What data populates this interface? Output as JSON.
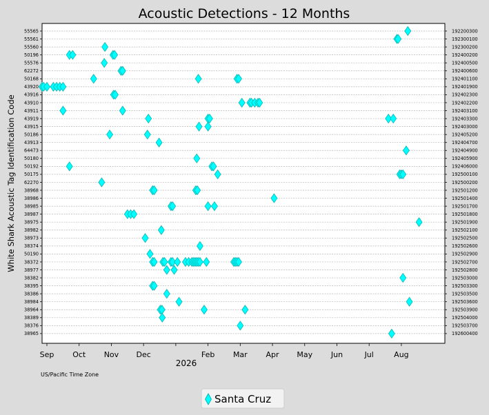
{
  "chart_data": {
    "type": "scatter",
    "title": "Acoustic Detections - 12 Months",
    "ylabel": "White Shark Acoustic Tag Identification Code",
    "timezone_note": "US/Pacific Time Zone",
    "x_year_label": "2026",
    "x_ticks": [
      "Sep",
      "Oct",
      "Nov",
      "Dec",
      "Feb",
      "Mar",
      "Apr",
      "May",
      "Jun",
      "Jul",
      "Aug"
    ],
    "xlim_months": [
      -0.15,
      12.35
    ],
    "grid": true,
    "legend_position": "bottom-center",
    "marker_color": "#00ffff",
    "marker_edge": "#00aaaa",
    "tags_left": [
      "55565",
      "55561",
      "55560",
      "50196",
      "55576",
      "62272",
      "50168",
      "43920",
      "43916",
      "43910",
      "43911",
      "43919",
      "43915",
      "50186",
      "43913",
      "64473",
      "50180",
      "50192",
      "50175",
      "62270",
      "38968",
      "38986",
      "38985",
      "38987",
      "38975",
      "38982",
      "38973",
      "38374",
      "50190",
      "38372",
      "38977",
      "38382",
      "38395",
      "38386",
      "38984",
      "38964",
      "38389",
      "38376",
      "38965"
    ],
    "tags_right": [
      "192200300",
      "192300100",
      "192300200",
      "192400200",
      "192400500",
      "192400600",
      "192401100",
      "192401900",
      "192402300",
      "192402200",
      "192403100",
      "192403300",
      "192403000",
      "192405200",
      "192404700",
      "192404900",
      "192405900",
      "192406000",
      "192500100",
      "192500200",
      "192501200",
      "192501400",
      "192501700",
      "192501800",
      "192501900",
      "192502100",
      "192502500",
      "192502600",
      "192502900",
      "192502700",
      "192502800",
      "192503000",
      "192503300",
      "192503500",
      "192503600",
      "192503900",
      "192504000",
      "192503700",
      "192600400"
    ],
    "series": [
      {
        "name": "Santa Cruz",
        "points": [
          {
            "tag": "55565",
            "x": [
              11.2
            ]
          },
          {
            "tag": "55561",
            "x": [
              10.86,
              10.9
            ]
          },
          {
            "tag": "55560",
            "x": [
              1.8
            ]
          },
          {
            "tag": "50196",
            "x": [
              0.7,
              0.8,
              2.05,
              2.1
            ]
          },
          {
            "tag": "55576",
            "x": [
              1.78
            ]
          },
          {
            "tag": "62272",
            "x": [
              2.3,
              2.35
            ]
          },
          {
            "tag": "50168",
            "x": [
              1.45,
              4.7,
              5.9,
              5.95
            ]
          },
          {
            "tag": "43920",
            "x": [
              -0.15,
              -0.1,
              0.0,
              0.2,
              0.3,
              0.4,
              0.5
            ]
          },
          {
            "tag": "43916",
            "x": [
              2.07,
              2.12
            ]
          },
          {
            "tag": "43910",
            "x": [
              6.05,
              6.3,
              6.35,
              6.45,
              6.55,
              6.6
            ]
          },
          {
            "tag": "43911",
            "x": [
              0.5,
              2.35
            ]
          },
          {
            "tag": "43919",
            "x": [
              3.15,
              5.0,
              5.05,
              10.6,
              10.75
            ]
          },
          {
            "tag": "43915",
            "x": [
              4.72,
              5.0
            ]
          },
          {
            "tag": "50186",
            "x": [
              1.95,
              3.12
            ]
          },
          {
            "tag": "43913",
            "x": [
              3.48
            ]
          },
          {
            "tag": "64473",
            "x": [
              11.15
            ]
          },
          {
            "tag": "50180",
            "x": [
              4.65
            ]
          },
          {
            "tag": "50192",
            "x": [
              0.7,
              5.12,
              5.17
            ]
          },
          {
            "tag": "50175",
            "x": [
              5.3,
              10.95,
              11.0,
              11.05
            ]
          },
          {
            "tag": "62270",
            "x": [
              1.7
            ]
          },
          {
            "tag": "38968",
            "x": [
              3.28,
              3.33,
              4.62,
              4.67
            ]
          },
          {
            "tag": "38986",
            "x": [
              7.05
            ]
          },
          {
            "tag": "38985",
            "x": [
              3.85,
              3.9,
              5.0,
              5.2
            ]
          },
          {
            "tag": "38987",
            "x": [
              2.5,
              2.6,
              2.7
            ]
          },
          {
            "tag": "38975",
            "x": [
              11.55
            ]
          },
          {
            "tag": "38982",
            "x": [
              3.55
            ]
          },
          {
            "tag": "38973",
            "x": [
              3.05
            ]
          },
          {
            "tag": "38374",
            "x": [
              4.75
            ]
          },
          {
            "tag": "50190",
            "x": [
              3.2
            ]
          },
          {
            "tag": "38372",
            "x": [
              3.28,
              3.33,
              3.6,
              3.65,
              3.85,
              3.9,
              4.05,
              4.3,
              4.4,
              4.5,
              4.55,
              4.6,
              4.65,
              4.7,
              4.75,
              4.95,
              5.8,
              5.85,
              5.9,
              5.95
            ]
          },
          {
            "tag": "38977",
            "x": [
              3.72,
              3.95
            ]
          },
          {
            "tag": "38382",
            "x": [
              11.05
            ]
          },
          {
            "tag": "38395",
            "x": [
              3.28,
              3.33
            ]
          },
          {
            "tag": "38386",
            "x": [
              3.72
            ]
          },
          {
            "tag": "38984",
            "x": [
              4.1,
              11.25
            ]
          },
          {
            "tag": "38964",
            "x": [
              3.52,
              3.57,
              4.88,
              6.15
            ]
          },
          {
            "tag": "38389",
            "x": [
              3.58
            ]
          },
          {
            "tag": "38376",
            "x": [
              6.0
            ]
          },
          {
            "tag": "38965",
            "x": [
              10.7
            ]
          }
        ]
      }
    ]
  }
}
